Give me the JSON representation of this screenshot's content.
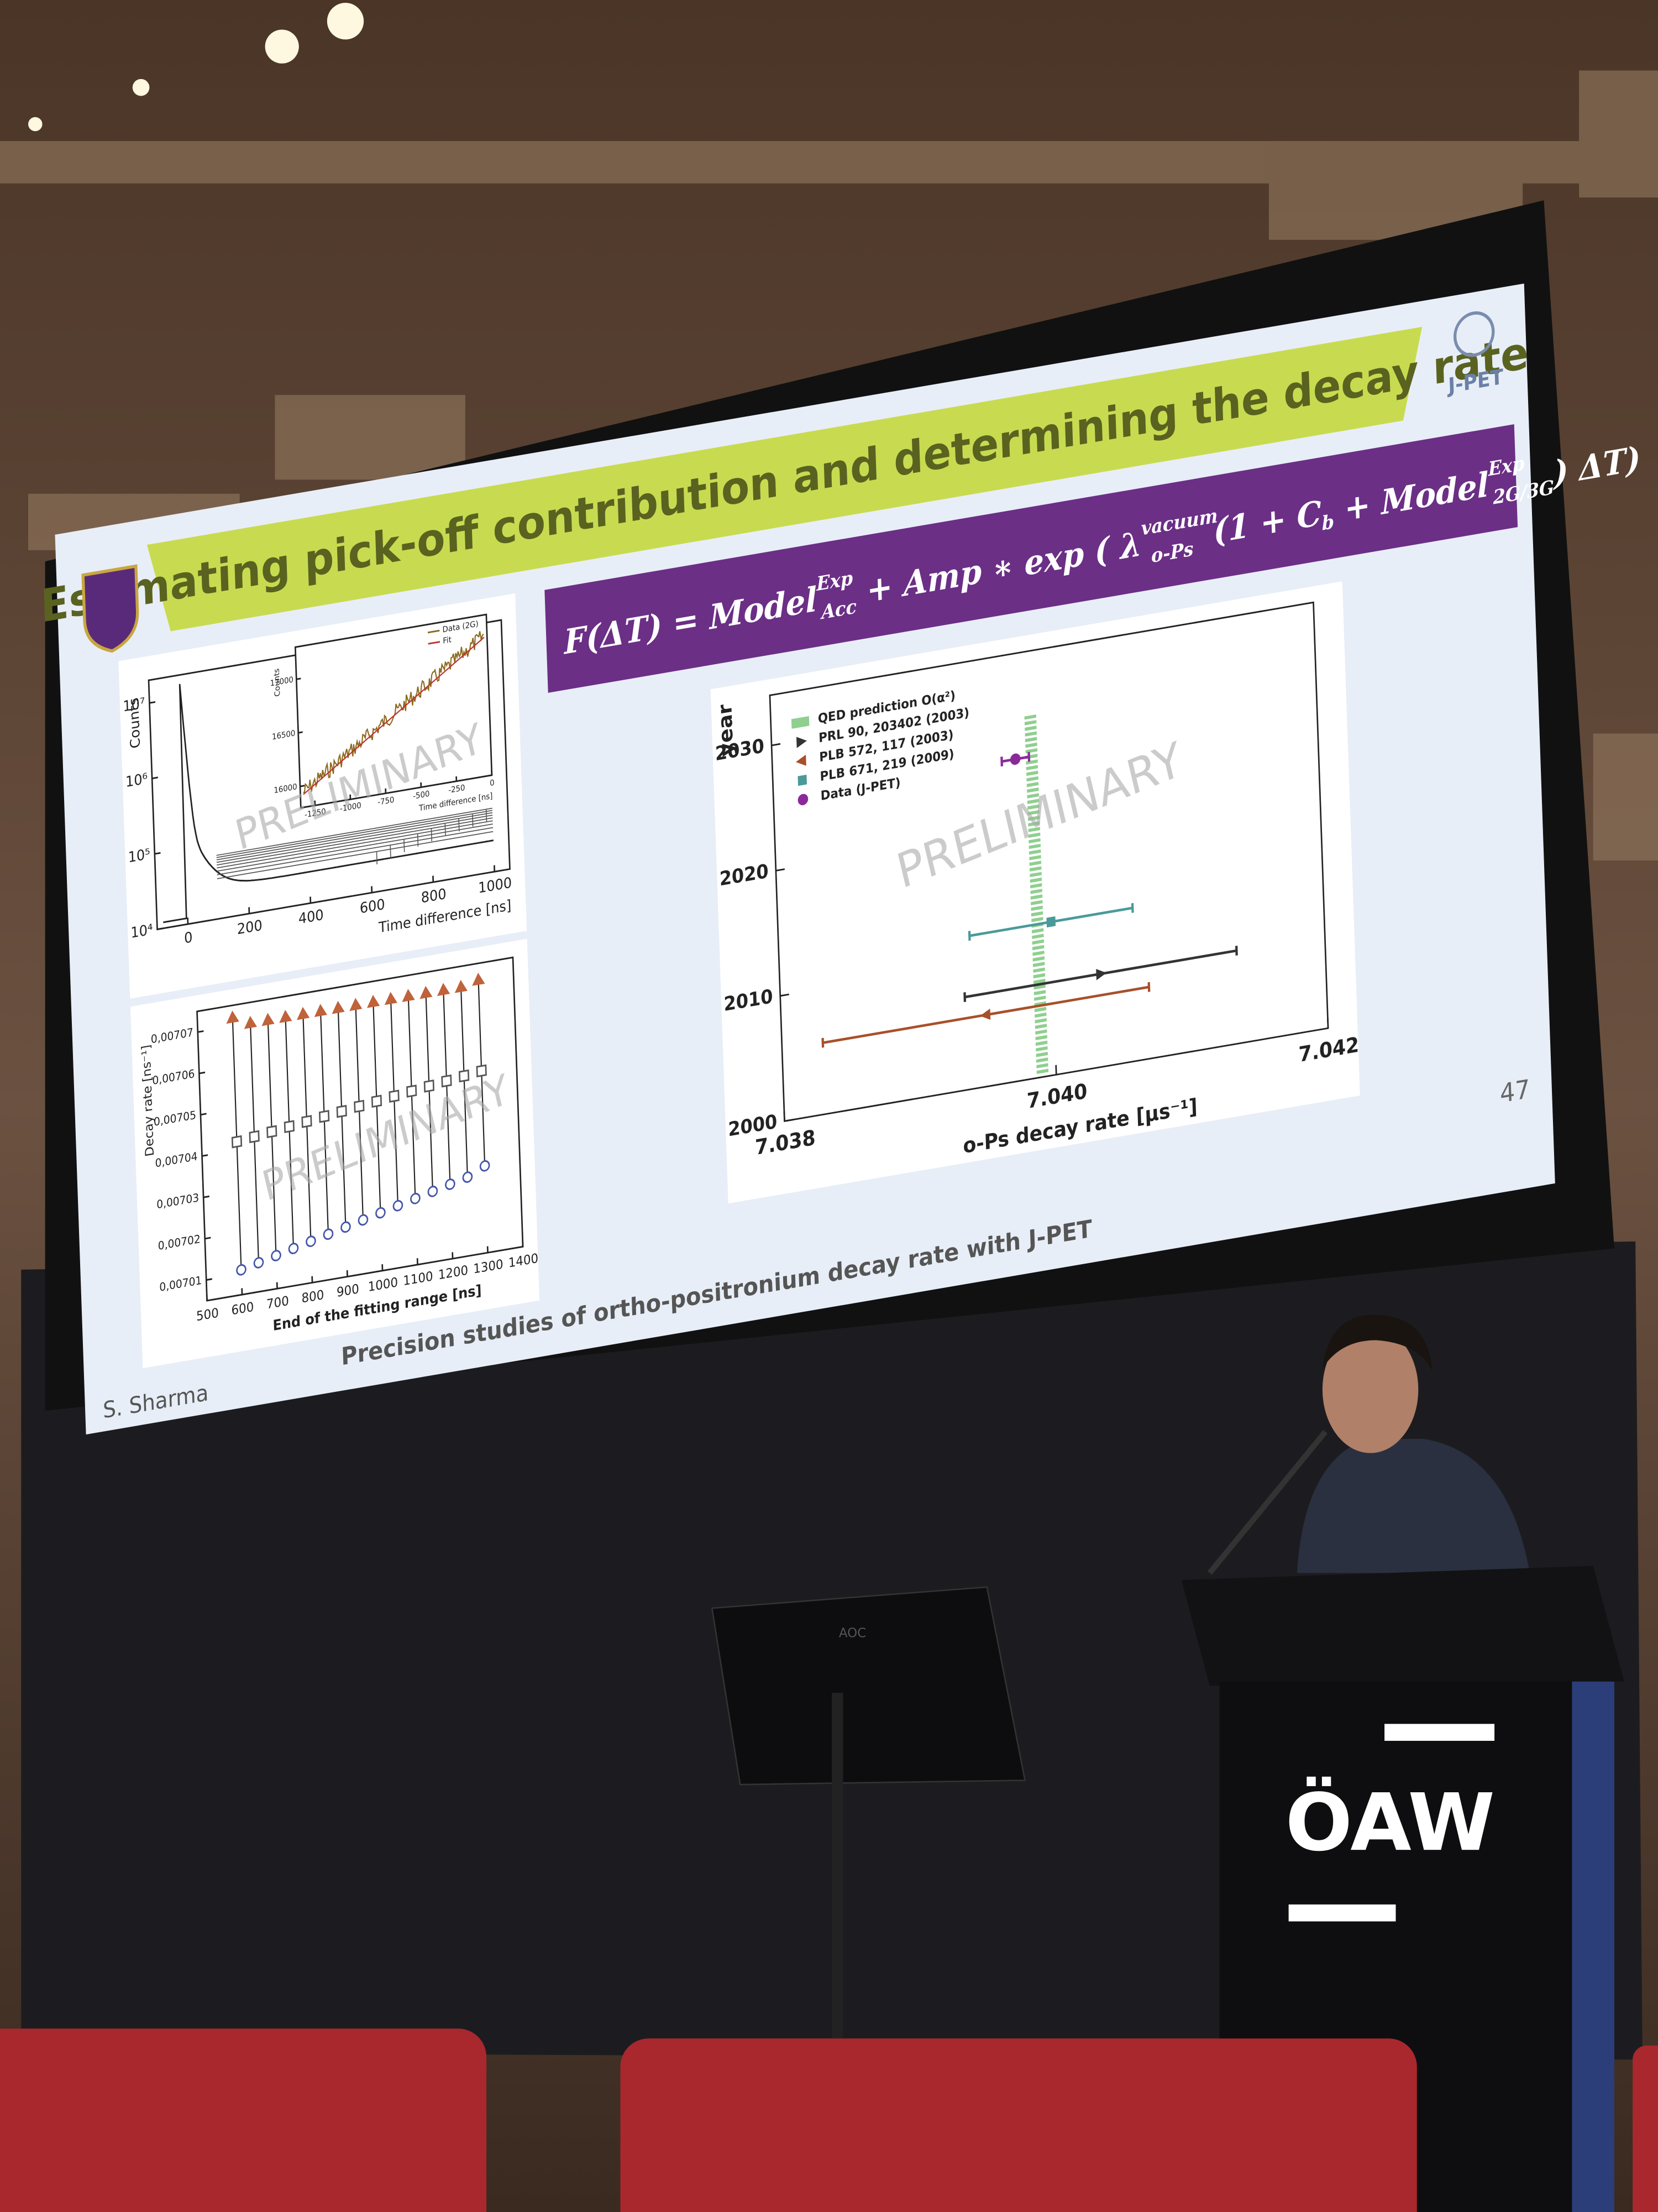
{
  "slide": {
    "title": "Estimating pick-off contribution and determining the decay rate",
    "logo": "J-PET",
    "formula": [
      "F(ΔT) = Model",
      "Exp",
      "Acc",
      " + Amp ∗ exp ( ",
      "λ",
      "vacuum",
      "o-Ps",
      "(1 + ",
      "C",
      "b",
      " + Model",
      "Exp",
      "2G/3G",
      ") ΔT)"
    ],
    "watermark": "PRELIMINARY",
    "footer": "Precision studies of ortho-positronium decay rate with J-PET",
    "author": "S. Sharma",
    "page": "47"
  },
  "counts_plot": {
    "y_label": "Counts",
    "x_label": "Time difference [ns]",
    "xlim": [
      -100,
      1050
    ],
    "ylim": [
      10000,
      20000000
    ],
    "log": true,
    "xticks": [
      0,
      200,
      400,
      600,
      800,
      1000
    ],
    "yticks": [
      {
        "value": 10000,
        "label": "10⁴"
      },
      {
        "value": 100000,
        "label": "10⁵"
      },
      {
        "value": 1000000,
        "label": "10⁶"
      },
      {
        "value": 10000000,
        "label": "10⁷"
      }
    ],
    "inset": {
      "xlim": [
        -1350,
        0
      ],
      "ylim": [
        15800,
        17300
      ],
      "xticks": [
        -1250,
        -1000,
        -750,
        -500,
        -250,
        0
      ],
      "yticks": [
        16000,
        16500,
        17000
      ],
      "legend": [
        "Data (2G)",
        "Fit"
      ],
      "colors": [
        "#8b6a1e",
        "#c03030"
      ]
    }
  },
  "rate_plot": {
    "y_label": "Decay rate [ns⁻¹]",
    "x_label": "End of the fitting range [ns]",
    "xlim": [
      500,
      1400
    ],
    "ylim": [
      0.007005,
      0.007075
    ],
    "xticks": [
      500,
      600,
      700,
      800,
      900,
      1000,
      1100,
      1200,
      1300,
      1400
    ],
    "yticks": [
      {
        "value": 0.00701,
        "label": "0,00701"
      },
      {
        "value": 0.00702,
        "label": "0,00702"
      },
      {
        "value": 0.00703,
        "label": "0,00703"
      },
      {
        "value": 0.00704,
        "label": "0,00704"
      },
      {
        "value": 0.00705,
        "label": "0,00705"
      },
      {
        "value": 0.00706,
        "label": "0,00706"
      },
      {
        "value": 0.00707,
        "label": "0,00707"
      }
    ],
    "x": [
      600,
      650,
      700,
      750,
      800,
      850,
      900,
      950,
      1000,
      1050,
      1100,
      1150,
      1200,
      1250,
      1300
    ],
    "series": [
      {
        "color": "#c0623a",
        "marker": "triangle",
        "values": [
          0.007072,
          0.00707,
          0.00707,
          0.00707,
          0.00707,
          0.00707,
          0.00707,
          0.00707,
          0.00707,
          0.00707,
          0.00707,
          0.00707,
          0.00707,
          0.00707,
          0.007071
        ]
      },
      {
        "color": "#555555",
        "marker": "square",
        "values": [
          0.007042,
          0.0070425,
          0.007043,
          0.0070435,
          0.007044,
          0.0070445,
          0.007045,
          0.0070455,
          0.007046,
          0.0070465,
          0.007047,
          0.0070475,
          0.007048,
          0.0070485,
          0.007049
        ]
      },
      {
        "color": "#4455aa",
        "marker": "circle",
        "values": [
          0.007011,
          0.007012,
          0.007013,
          0.007014,
          0.007015,
          0.007016,
          0.007017,
          0.007018,
          0.007019,
          0.00702,
          0.007021,
          0.007022,
          0.007023,
          0.007024,
          0.007026
        ]
      }
    ]
  },
  "history_plot": {
    "y_label": "year",
    "x_label": "o-Ps decay rate [μs⁻¹]",
    "xlim": [
      7.038,
      7.042
    ],
    "ylim": [
      2000,
      2034
    ],
    "xticks": [
      7.038,
      {
        "value": 7.04,
        "label": "7.040"
      },
      7.042
    ],
    "yticks": [
      2000,
      2010,
      2020,
      2030
    ],
    "qed": {
      "name": "QED prediction O(α²)",
      "value": 7.0399,
      "color": "#8fcf8f"
    },
    "points": [
      {
        "name": "PRL 90, 203402 (2003)",
        "color": "#333333",
        "marker": "triangle-right",
        "x": 7.04035,
        "y": 2007.4,
        "xerr": 0.001
      },
      {
        "name": "PLB 572, 117 (2003)",
        "color": "#a8502a",
        "marker": "triangle-left",
        "x": 7.0395,
        "y": 2005.7,
        "xerr": 0.0012
      },
      {
        "name": "PLB 671, 219 (2009)",
        "color": "#4a9a9a",
        "marker": "square",
        "x": 7.04,
        "y": 2012.2,
        "xerr": 0.0006
      },
      {
        "name": "Data (J-PET)",
        "color": "#8a2a9a",
        "marker": "circle",
        "x": 7.03978,
        "y": 2025.6,
        "xerr": 0.0001
      }
    ]
  },
  "podium": {
    "label": "ÖAW"
  },
  "monitor": {
    "label": "AOC"
  }
}
